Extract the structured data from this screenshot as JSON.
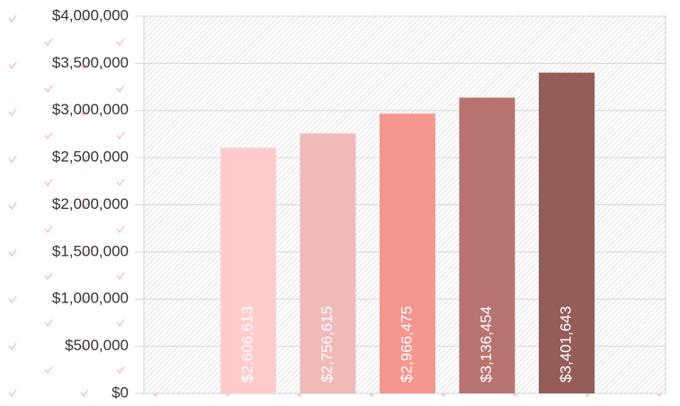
{
  "chart_data": {
    "type": "bar",
    "values": [
      2606613,
      2756615,
      2966475,
      3136454,
      3401643
    ],
    "value_labels": [
      "$2,606,613",
      "$2,756,615",
      "$2,966,475",
      "$3,136,454",
      "$3,401,643"
    ],
    "colors": [
      "#ffcccb",
      "#efbab8",
      "#f4978e",
      "#b87370",
      "#955d58"
    ],
    "ylim": [
      0,
      4000000
    ],
    "yticks": [
      {
        "value": 0,
        "label": "$0"
      },
      {
        "value": 500000,
        "label": "$500,000"
      },
      {
        "value": 1000000,
        "label": "$1,000,000"
      },
      {
        "value": 1500000,
        "label": "$1,500,000"
      },
      {
        "value": 2000000,
        "label": "$2,000,000"
      },
      {
        "value": 2500000,
        "label": "$2,500,000"
      },
      {
        "value": 3000000,
        "label": "$3,000,000"
      },
      {
        "value": 3500000,
        "label": "$3,500,000"
      },
      {
        "value": 4000000,
        "label": "$4,000,000"
      }
    ],
    "grid": true
  }
}
